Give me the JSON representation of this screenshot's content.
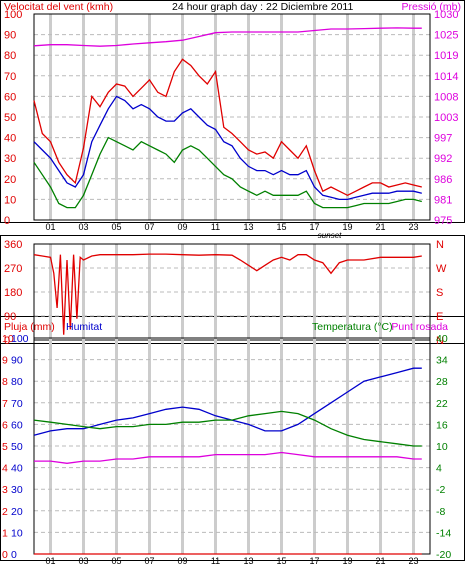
{
  "colors": {
    "wind": "#e00000",
    "avg_wind": "#0000cc",
    "gust_low": "#008000",
    "pressure": "#dd00dd",
    "humidity": "#0000cc",
    "temperature": "#008000",
    "dewpoint": "#dd00dd",
    "rain": "#e00000",
    "grid": "#cccccc",
    "frame": "#000000"
  },
  "chart_data": [
    {
      "type": "line",
      "id": "wind-pressure",
      "title": "24 hour graph day : 22 Diciembre 2011",
      "left_axis_label": "Velocitat del vent (kmh)",
      "right_axis_label": "Pressió (mb)",
      "left_ticks": [
        "100",
        "90",
        "80",
        "70",
        "60",
        "50",
        "40",
        "30",
        "20",
        "10",
        "0"
      ],
      "right_ticks": [
        "1030",
        "1025",
        "1019",
        "1014",
        "1008",
        "1003",
        "997",
        "992",
        "986",
        "981",
        "975"
      ],
      "x_ticks": [
        "01",
        "03",
        "05",
        "07",
        "09",
        "11",
        "13",
        "15",
        "17",
        "19",
        "21",
        "23"
      ],
      "x_note": "sunset",
      "xlim": [
        0,
        24
      ],
      "ylim_left": [
        0,
        100
      ],
      "ylim_right": [
        975,
        1030
      ],
      "series": [
        {
          "axis": "left",
          "color_key": "wind",
          "x": [
            0,
            0.5,
            1,
            1.5,
            2,
            2.5,
            3,
            3.5,
            4,
            4.5,
            5,
            5.5,
            6,
            6.5,
            7,
            7.5,
            8,
            8.5,
            9,
            9.5,
            10,
            10.5,
            11,
            11.5,
            12,
            12.5,
            13,
            13.5,
            14,
            14.5,
            15,
            15.5,
            16,
            16.5,
            17,
            17.5,
            18,
            18.5,
            19,
            19.5,
            20,
            20.5,
            21,
            21.5,
            22,
            22.5,
            23,
            23.5
          ],
          "y": [
            58,
            42,
            38,
            28,
            22,
            18,
            35,
            60,
            55,
            62,
            66,
            65,
            60,
            64,
            68,
            62,
            60,
            72,
            78,
            75,
            70,
            66,
            72,
            45,
            42,
            38,
            34,
            32,
            33,
            30,
            38,
            34,
            30,
            36,
            24,
            14,
            16,
            14,
            12,
            14,
            16,
            18,
            18,
            16,
            17,
            18,
            17,
            16
          ]
        },
        {
          "axis": "left",
          "color_key": "avg_wind",
          "x": [
            0,
            0.5,
            1,
            1.5,
            2,
            2.5,
            3,
            3.5,
            4,
            4.5,
            5,
            5.5,
            6,
            6.5,
            7,
            7.5,
            8,
            8.5,
            9,
            9.5,
            10,
            10.5,
            11,
            11.5,
            12,
            12.5,
            13,
            13.5,
            14,
            14.5,
            15,
            15.5,
            16,
            16.5,
            17,
            17.5,
            18,
            18.5,
            19,
            19.5,
            20,
            20.5,
            21,
            21.5,
            22,
            22.5,
            23,
            23.5
          ],
          "y": [
            38,
            34,
            30,
            24,
            18,
            16,
            22,
            38,
            46,
            54,
            60,
            58,
            54,
            56,
            54,
            50,
            48,
            48,
            52,
            54,
            50,
            46,
            44,
            38,
            36,
            30,
            26,
            24,
            24,
            22,
            24,
            22,
            22,
            24,
            16,
            12,
            11,
            10,
            10,
            11,
            12,
            13,
            13,
            13,
            14,
            14,
            14,
            13
          ]
        },
        {
          "axis": "left",
          "color_key": "gust_low",
          "x": [
            0,
            0.5,
            1,
            1.5,
            2,
            2.5,
            3,
            3.5,
            4,
            4.5,
            5,
            5.5,
            6,
            6.5,
            7,
            7.5,
            8,
            8.5,
            9,
            9.5,
            10,
            10.5,
            11,
            11.5,
            12,
            12.5,
            13,
            13.5,
            14,
            14.5,
            15,
            15.5,
            16,
            16.5,
            17,
            17.5,
            18,
            18.5,
            19,
            19.5,
            20,
            20.5,
            21,
            21.5,
            22,
            22.5,
            23,
            23.5
          ],
          "y": [
            28,
            22,
            16,
            8,
            6,
            6,
            12,
            22,
            32,
            40,
            38,
            36,
            34,
            38,
            36,
            34,
            32,
            28,
            34,
            36,
            34,
            30,
            26,
            22,
            20,
            16,
            14,
            12,
            14,
            12,
            12,
            12,
            12,
            14,
            8,
            6,
            6,
            6,
            6,
            7,
            8,
            8,
            8,
            8,
            9,
            10,
            10,
            9
          ]
        },
        {
          "axis": "right",
          "color_key": "pressure",
          "x": [
            0,
            1,
            2,
            3,
            4,
            5,
            6,
            7,
            8,
            9,
            10,
            11,
            12,
            13,
            14,
            15,
            16,
            17,
            18,
            19,
            20,
            21,
            22,
            23,
            23.5
          ],
          "y": [
            1021.5,
            1021.8,
            1021.8,
            1021.6,
            1021.4,
            1021.6,
            1022,
            1022.3,
            1022.6,
            1023,
            1024,
            1025,
            1025.2,
            1025.2,
            1025.2,
            1025.2,
            1025.2,
            1025.6,
            1026,
            1026,
            1026.1,
            1026.2,
            1026.3,
            1026.2,
            1026.2
          ]
        }
      ]
    },
    {
      "type": "scatter",
      "id": "wind-direction",
      "left_ticks": [
        "360",
        "270",
        "180",
        "90",
        "0"
      ],
      "right_ticks": [
        "N",
        "W",
        "S",
        "E",
        "N"
      ],
      "ylim_left": [
        0,
        360
      ],
      "xlim": [
        0,
        24
      ],
      "series": [
        {
          "axis": "left",
          "color_key": "wind",
          "x": [
            0,
            0.5,
            1,
            1.2,
            1.4,
            1.6,
            1.8,
            2,
            2.2,
            2.4,
            2.6,
            2.8,
            3,
            3.5,
            4,
            5,
            6,
            7,
            8,
            9,
            10,
            11,
            12,
            12.5,
            13,
            13.5,
            14,
            14.5,
            15,
            15.5,
            16,
            16.5,
            17,
            17.5,
            18,
            18.5,
            19,
            20,
            21,
            22,
            23,
            23.5
          ],
          "y": [
            320,
            315,
            310,
            250,
            120,
            320,
            20,
            300,
            40,
            320,
            80,
            310,
            300,
            315,
            320,
            320,
            320,
            322,
            322,
            320,
            318,
            320,
            318,
            300,
            280,
            260,
            280,
            300,
            310,
            300,
            320,
            320,
            300,
            290,
            250,
            290,
            300,
            300,
            310,
            310,
            310,
            315
          ]
        }
      ]
    },
    {
      "type": "line",
      "id": "humidity-temperature",
      "left_axis_label": "Pluja (mm)",
      "left_axis_label2": "Humitat",
      "right_axis_label": "Temperatura (°C)",
      "right_axis_label2": "Punt rosada",
      "left_ticks_outer": [
        "10",
        "9",
        "8",
        "7",
        "6",
        "5",
        "4",
        "3",
        "2",
        "1",
        "0"
      ],
      "left_ticks_inner": [
        "100",
        "90",
        "80",
        "70",
        "60",
        "50",
        "40",
        "30",
        "20",
        "10",
        "0"
      ],
      "right_ticks": [
        "40",
        "34",
        "28",
        "22",
        "16",
        "10",
        "4",
        "-2",
        "-8",
        "-14",
        "-20"
      ],
      "ylim_left": [
        0,
        100
      ],
      "ylim_right": [
        -20,
        40
      ],
      "xlim": [
        0,
        24
      ],
      "series": [
        {
          "axis": "left",
          "color_key": "humidity",
          "x": [
            0,
            1,
            2,
            3,
            4,
            5,
            6,
            7,
            8,
            9,
            10,
            11,
            12,
            13,
            14,
            15,
            16,
            17,
            18,
            19,
            20,
            21,
            22,
            23,
            23.5
          ],
          "y": [
            55,
            57,
            58,
            58,
            60,
            62,
            63,
            65,
            67,
            68,
            67,
            64,
            62,
            60,
            57,
            57,
            60,
            65,
            70,
            75,
            80,
            82,
            84,
            86,
            86
          ]
        },
        {
          "axis": "left",
          "color_key": "temperature",
          "x": [
            0,
            1,
            2,
            3,
            4,
            5,
            6,
            7,
            8,
            9,
            10,
            11,
            12,
            13,
            14,
            15,
            16,
            17,
            18,
            19,
            20,
            21,
            22,
            23,
            23.5
          ],
          "y": [
            62,
            61,
            60,
            59,
            58,
            59,
            59,
            60,
            60,
            61,
            61,
            62,
            62,
            64,
            65,
            66,
            65,
            62,
            58,
            55,
            53,
            52,
            51,
            50,
            50
          ]
        },
        {
          "axis": "left",
          "color_key": "dewpoint",
          "x": [
            0,
            1,
            2,
            3,
            4,
            5,
            6,
            7,
            8,
            9,
            10,
            11,
            12,
            13,
            14,
            15,
            16,
            17,
            18,
            19,
            20,
            21,
            22,
            23,
            23.5
          ],
          "y": [
            43,
            43,
            42,
            43,
            43,
            44,
            44,
            45,
            45,
            45,
            45,
            46,
            46,
            46,
            46,
            47,
            46,
            45,
            45,
            45,
            45,
            45,
            45,
            44,
            44
          ]
        },
        {
          "axis": "left",
          "color_key": "rain",
          "x": [
            0,
            23.5
          ],
          "y": [
            0,
            0
          ]
        }
      ]
    }
  ]
}
